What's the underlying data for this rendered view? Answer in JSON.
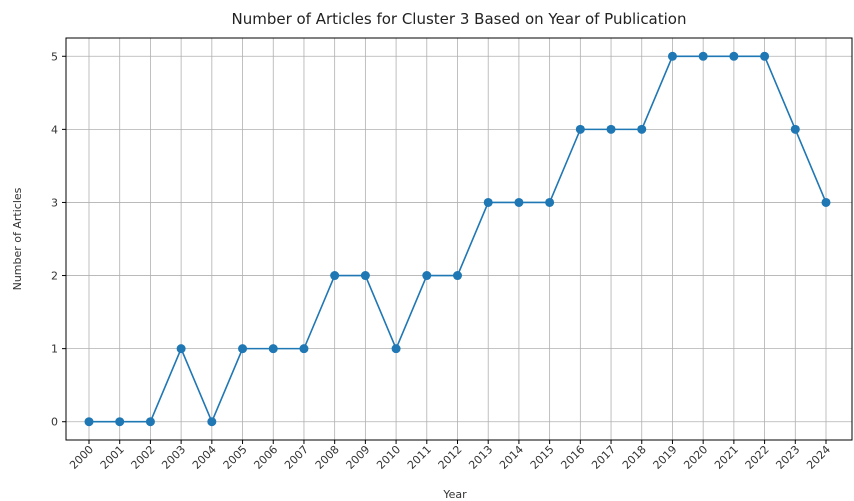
{
  "chart_data": {
    "type": "line",
    "title": "Number of Articles for Cluster 3 Based on Year of Publication",
    "xlabel": "Year",
    "ylabel": "Number of Articles",
    "x": [
      "2000",
      "2001",
      "2002",
      "2003",
      "2004",
      "2005",
      "2006",
      "2007",
      "2008",
      "2009",
      "2010",
      "2011",
      "2012",
      "2013",
      "2014",
      "2015",
      "2016",
      "2017",
      "2018",
      "2019",
      "2020",
      "2021",
      "2022",
      "2023",
      "2024"
    ],
    "values": [
      0,
      0,
      0,
      1,
      0,
      1,
      1,
      1,
      2,
      2,
      1,
      2,
      2,
      3,
      3,
      3,
      4,
      4,
      4,
      5,
      5,
      5,
      5,
      4,
      3
    ],
    "yticks": [
      "0",
      "1",
      "2",
      "3",
      "4",
      "5"
    ],
    "ylim": [
      -0.25,
      5.25
    ],
    "grid": true,
    "color": "#1f77b4"
  }
}
